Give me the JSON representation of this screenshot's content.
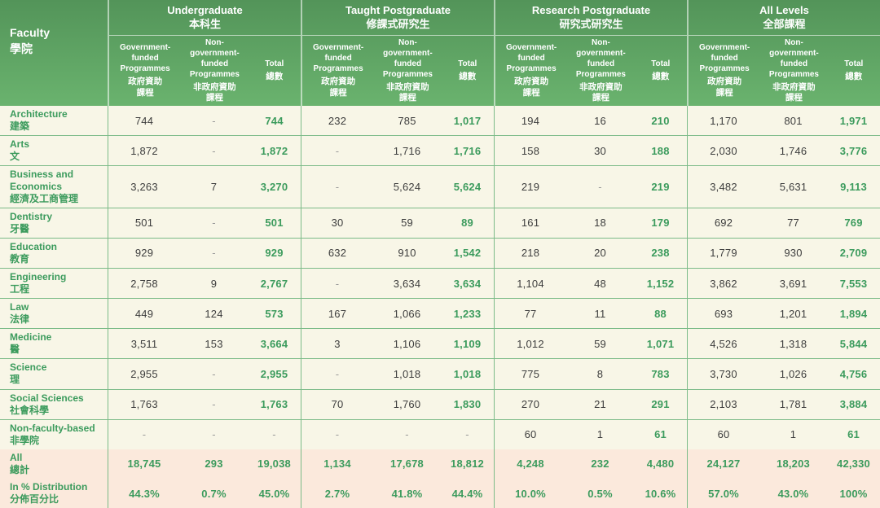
{
  "colors": {
    "header_top": "#539459",
    "header_bottom": "#6ab36e",
    "accent_text": "#3c9b5d",
    "body_bg": "#f8f6e7",
    "summary_bg": "#fbe9dc",
    "grid_line": "#7cbb88",
    "number_text": "#3d3d3d",
    "dash_text": "#9a9a9a"
  },
  "table": {
    "faculty_header": {
      "en": "Faculty",
      "zh": "學院"
    },
    "groups": [
      {
        "en": "Undergraduate",
        "zh": "本科生"
      },
      {
        "en": "Taught Postgraduate",
        "zh": "修課式研究生"
      },
      {
        "en": "Research Postgraduate",
        "zh": "研究式研究生"
      },
      {
        "en": "All Levels",
        "zh": "全部課程"
      }
    ],
    "subcolumns": [
      {
        "en": "Government-\nfunded\nProgrammes",
        "zh": "政府資助\n課程"
      },
      {
        "en": "Non-\ngovernment-\nfunded\nProgrammes",
        "zh": "非政府資助\n課程"
      },
      {
        "en": "Total",
        "zh": "總數"
      }
    ],
    "rows": [
      {
        "en": "Architecture",
        "zh": "建築",
        "v": [
          "744",
          "-",
          "744",
          "232",
          "785",
          "1,017",
          "194",
          "16",
          "210",
          "1,170",
          "801",
          "1,971"
        ]
      },
      {
        "en": "Arts",
        "zh": "文",
        "v": [
          "1,872",
          "-",
          "1,872",
          "-",
          "1,716",
          "1,716",
          "158",
          "30",
          "188",
          "2,030",
          "1,746",
          "3,776"
        ]
      },
      {
        "en": "Business and Economics",
        "zh": "經濟及工商管理",
        "v": [
          "3,263",
          "7",
          "3,270",
          "-",
          "5,624",
          "5,624",
          "219",
          "-",
          "219",
          "3,482",
          "5,631",
          "9,113"
        ]
      },
      {
        "en": "Dentistry",
        "zh": "牙醫",
        "v": [
          "501",
          "-",
          "501",
          "30",
          "59",
          "89",
          "161",
          "18",
          "179",
          "692",
          "77",
          "769"
        ]
      },
      {
        "en": "Education",
        "zh": "教育",
        "v": [
          "929",
          "-",
          "929",
          "632",
          "910",
          "1,542",
          "218",
          "20",
          "238",
          "1,779",
          "930",
          "2,709"
        ]
      },
      {
        "en": "Engineering",
        "zh": "工程",
        "v": [
          "2,758",
          "9",
          "2,767",
          "-",
          "3,634",
          "3,634",
          "1,104",
          "48",
          "1,152",
          "3,862",
          "3,691",
          "7,553"
        ]
      },
      {
        "en": "Law",
        "zh": "法律",
        "v": [
          "449",
          "124",
          "573",
          "167",
          "1,066",
          "1,233",
          "77",
          "11",
          "88",
          "693",
          "1,201",
          "1,894"
        ]
      },
      {
        "en": "Medicine",
        "zh": "醫",
        "v": [
          "3,511",
          "153",
          "3,664",
          "3",
          "1,106",
          "1,109",
          "1,012",
          "59",
          "1,071",
          "4,526",
          "1,318",
          "5,844"
        ]
      },
      {
        "en": "Science",
        "zh": "理",
        "v": [
          "2,955",
          "-",
          "2,955",
          "-",
          "1,018",
          "1,018",
          "775",
          "8",
          "783",
          "3,730",
          "1,026",
          "4,756"
        ]
      },
      {
        "en": "Social Sciences",
        "zh": "社會科學",
        "v": [
          "1,763",
          "-",
          "1,763",
          "70",
          "1,760",
          "1,830",
          "270",
          "21",
          "291",
          "2,103",
          "1,781",
          "3,884"
        ]
      },
      {
        "en": "Non-faculty-based",
        "zh": "非學院",
        "v": [
          "-",
          "-",
          "-",
          "-",
          "-",
          "-",
          "60",
          "1",
          "61",
          "60",
          "1",
          "61"
        ]
      }
    ],
    "summary_rows": [
      {
        "en": "All",
        "zh": "總計",
        "v": [
          "18,745",
          "293",
          "19,038",
          "1,134",
          "17,678",
          "18,812",
          "4,248",
          "232",
          "4,480",
          "24,127",
          "18,203",
          "42,330"
        ]
      },
      {
        "en": "In % Distribution",
        "zh": "分佈百分比",
        "v": [
          "44.3%",
          "0.7%",
          "45.0%",
          "2.7%",
          "41.8%",
          "44.4%",
          "10.0%",
          "0.5%",
          "10.6%",
          "57.0%",
          "43.0%",
          "100%"
        ]
      }
    ]
  }
}
